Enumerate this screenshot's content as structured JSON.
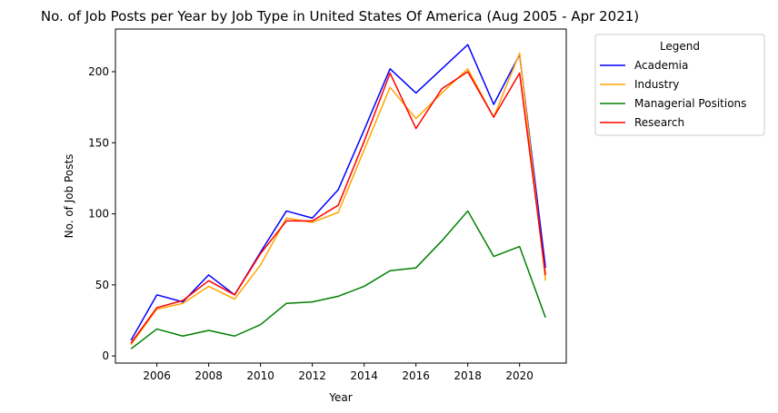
{
  "chart_data": {
    "type": "line",
    "title": "No. of Job Posts per Year by Job Type in United States Of America (Aug 2005 - Apr 2021)",
    "xlabel": "Year",
    "ylabel": "No. of Job Posts",
    "x": [
      2005,
      2006,
      2007,
      2008,
      2009,
      2010,
      2011,
      2012,
      2013,
      2014,
      2015,
      2016,
      2017,
      2018,
      2019,
      2020,
      2021
    ],
    "xlim": [
      2004.4,
      2021.8
    ],
    "ylim": [
      -5,
      230
    ],
    "xticks": [
      "2006",
      "2008",
      "2010",
      "2012",
      "2014",
      "2016",
      "2018",
      "2020"
    ],
    "yticks": [
      "0",
      "50",
      "100",
      "150",
      "200"
    ],
    "grid": false,
    "legend": {
      "title": "Legend",
      "placement": "outside-top-right"
    },
    "series": [
      {
        "name": "Academia",
        "color": "#0000ff",
        "values": [
          11,
          43,
          38,
          57,
          43,
          73,
          102,
          97,
          117,
          159,
          202,
          185,
          202,
          219,
          177,
          212,
          62
        ]
      },
      {
        "name": "Industry",
        "color": "#ffa500",
        "values": [
          8,
          33,
          37,
          49,
          40,
          64,
          97,
          94,
          101,
          145,
          189,
          167,
          185,
          202,
          168,
          213,
          53
        ]
      },
      {
        "name": "Managerial Positions",
        "color": "#008000",
        "values": [
          5,
          19,
          14,
          18,
          14,
          22,
          37,
          38,
          42,
          49,
          60,
          62,
          81,
          102,
          70,
          77,
          27
        ]
      },
      {
        "name": "Research",
        "color": "#ff0000",
        "values": [
          9,
          34,
          39,
          53,
          43,
          72,
          95,
          95,
          106,
          151,
          199,
          160,
          188,
          200,
          168,
          199,
          57
        ]
      }
    ]
  }
}
